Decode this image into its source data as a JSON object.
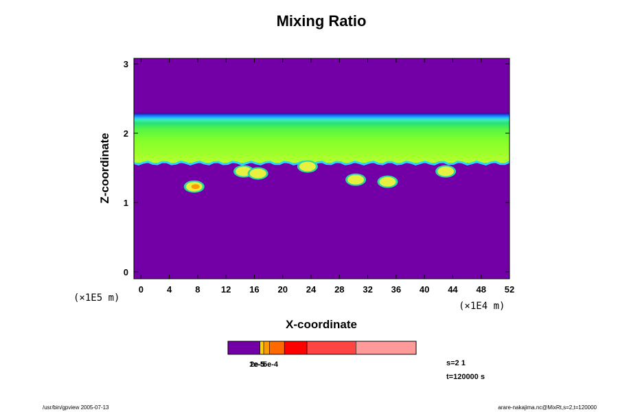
{
  "chart_data": {
    "type": "heatmap",
    "title": "Mixing Ratio",
    "xlabel": "X-coordinate",
    "ylabel": "Z-coordinate",
    "x_scale_label": "(×1E4 m)",
    "z_scale_label": "(×1E5 m)",
    "xlim": [
      -1,
      52
    ],
    "ylim": [
      -0.1,
      3.08
    ],
    "x_ticks": [
      "0",
      "4",
      "8",
      "12",
      "16",
      "20",
      "24",
      "28",
      "32",
      "36",
      "40",
      "44",
      "48",
      "52"
    ],
    "y_ticks": [
      "0",
      "1",
      "2",
      "3"
    ],
    "layers": {
      "cloud_base_z": 1.57,
      "cloud_top_z": 2.29,
      "background_color": "#7300a6"
    },
    "blobs": [
      {
        "x": 7.5,
        "z": 1.23,
        "level": "yellow"
      },
      {
        "x": 14.5,
        "z": 1.45,
        "level": "yellow"
      },
      {
        "x": 16.5,
        "z": 1.42,
        "level": "yellow"
      },
      {
        "x": 23.5,
        "z": 1.52,
        "level": "yellow"
      },
      {
        "x": 30.3,
        "z": 1.33,
        "level": "yellow"
      },
      {
        "x": 34.8,
        "z": 1.3,
        "level": "yellow"
      },
      {
        "x": 43.0,
        "z": 1.45,
        "level": "yellow"
      }
    ],
    "colorbar": {
      "labels_overlapped": [
        "1e-5",
        "2e-5",
        "5e-4"
      ],
      "colors": [
        "#7300a6",
        "#ffd400",
        "#ff9900",
        "#ff6a00",
        "#ff0000",
        "#ff4444",
        "#ff9a9a"
      ],
      "fractions": [
        0.17,
        0.02,
        0.03,
        0.08,
        0.12,
        0.26,
        0.32
      ]
    }
  },
  "info": {
    "step": "s=2 1",
    "time": "t=120000 s"
  },
  "footer": {
    "left": "/usr/bin/gpview 2005-07-13",
    "right": "arare-nakajima.nc@MixRt,s=2,t=120000"
  }
}
